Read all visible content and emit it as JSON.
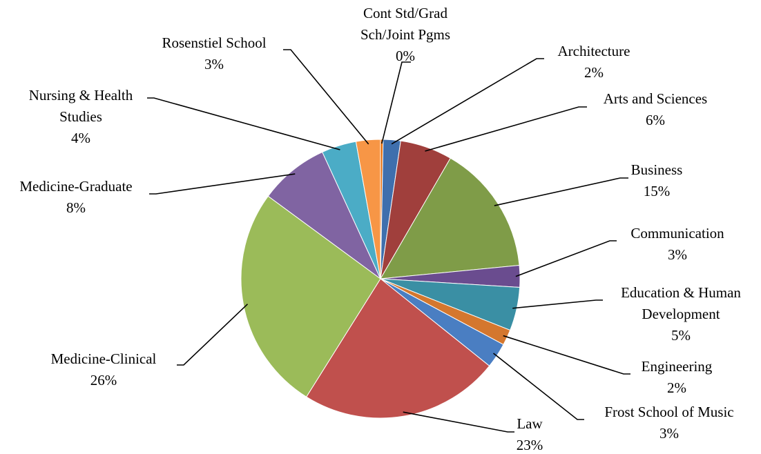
{
  "chart_data": {
    "type": "pie",
    "start_angle_deg": 0,
    "direction": "clockwise",
    "slices": [
      {
        "name": "Cont Std/Grad Sch/Joint Pgms",
        "value": 0.3,
        "label_lines": [
          "Cont Std/Grad",
          "Sch/Joint Pgms"
        ],
        "pct_label": "0%",
        "color": "#E46C0A"
      },
      {
        "name": "Architecture",
        "value": 2,
        "label_lines": [
          "Architecture"
        ],
        "pct_label": "2%",
        "color": "#3F6FAD"
      },
      {
        "name": "Arts and Sciences",
        "value": 6,
        "label_lines": [
          "Arts and Sciences"
        ],
        "pct_label": "6%",
        "color": "#A03F3C"
      },
      {
        "name": "Business",
        "value": 15,
        "label_lines": [
          "Business"
        ],
        "pct_label": "15%",
        "color": "#7F9C48"
      },
      {
        "name": "Communication",
        "value": 2.5,
        "label_lines": [
          "Communication"
        ],
        "pct_label": "3%",
        "color": "#6A4C8F"
      },
      {
        "name": "Education & Human Development",
        "value": 5,
        "label_lines": [
          "Education & Human",
          "Development"
        ],
        "pct_label": "5%",
        "color": "#3A8FA4"
      },
      {
        "name": "Engineering",
        "value": 1.8,
        "label_lines": [
          "Engineering"
        ],
        "pct_label": "2%",
        "color": "#D4772E"
      },
      {
        "name": "Frost School of Music",
        "value": 2.9,
        "label_lines": [
          "Frost School of Music"
        ],
        "pct_label": "3%",
        "color": "#4A7EC2"
      },
      {
        "name": "Law",
        "value": 23,
        "label_lines": [
          "Law"
        ],
        "pct_label": "23%",
        "color": "#C0504D"
      },
      {
        "name": "Medicine-Clinical",
        "value": 26,
        "label_lines": [
          "Medicine-Clinical"
        ],
        "pct_label": "26%",
        "color": "#9BBB59"
      },
      {
        "name": "Medicine-Graduate",
        "value": 8,
        "label_lines": [
          "Medicine-Graduate"
        ],
        "pct_label": "8%",
        "color": "#8064A2"
      },
      {
        "name": "Nursing & Health Studies",
        "value": 4,
        "label_lines": [
          "Nursing & Health",
          "Studies"
        ],
        "pct_label": "4%",
        "color": "#4BACC6"
      },
      {
        "name": "Rosenstiel School",
        "value": 2.8,
        "label_lines": [
          "Rosenstiel School"
        ],
        "pct_label": "3%",
        "color": "#F79646"
      }
    ],
    "legend": "none",
    "data_labels": "outside with leader lines"
  }
}
